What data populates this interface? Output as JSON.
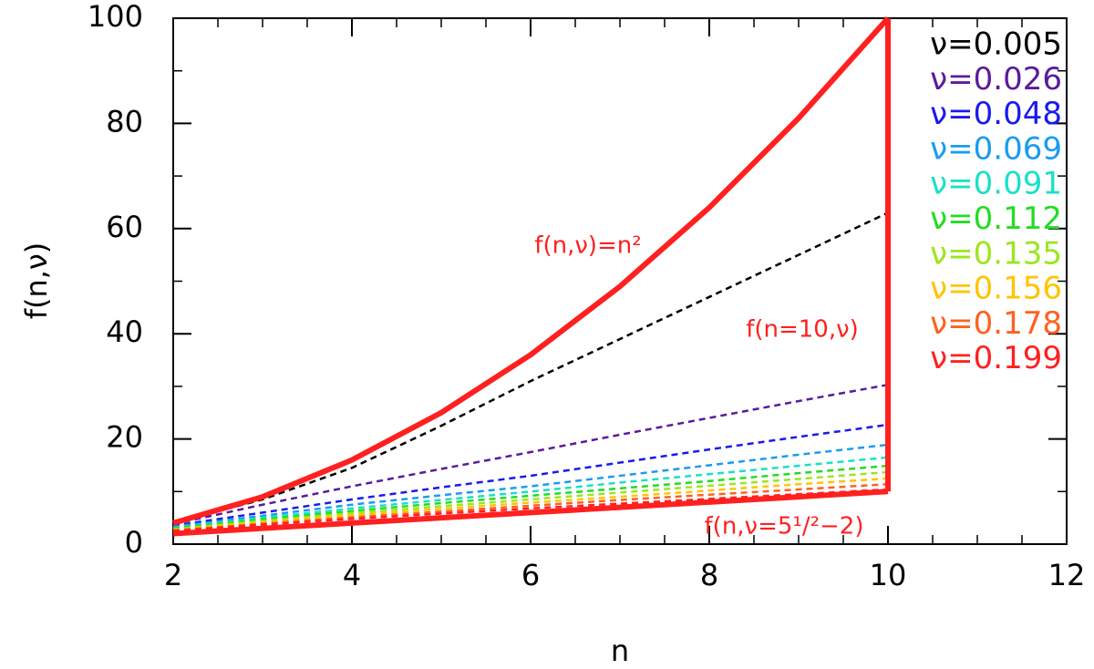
{
  "chart_data": {
    "type": "line",
    "x_label": "n",
    "y_label": "f(n,ν)",
    "xlim": [
      2,
      12
    ],
    "xticks": [
      2,
      4,
      6,
      8,
      10,
      12
    ],
    "ylim": [
      0,
      100
    ],
    "yticks": [
      0,
      20,
      40,
      60,
      80,
      100
    ],
    "annotations": [
      "f(n,ν)=n²",
      "f(n=10,ν)",
      "f(n,ν=5¹/²−2)"
    ],
    "series": [
      {
        "name": "ν=0.005",
        "color": "#000000",
        "line_style": "dashed",
        "x": [
          2,
          3,
          4,
          5,
          6,
          7,
          8,
          9,
          10
        ],
        "values": [
          4,
          8.5,
          14.5,
          22.5,
          31,
          39,
          47,
          55,
          63
        ]
      },
      {
        "name": "ν=0.026",
        "color": "#5b1a9e",
        "line_style": "dashed",
        "x": [
          2,
          3,
          4,
          5,
          6,
          7,
          8,
          9,
          10
        ],
        "values": [
          3.8,
          7.5,
          11,
          14.3,
          17.5,
          20.8,
          24,
          27.2,
          30.3
        ]
      },
      {
        "name": "ν=0.048",
        "color": "#1a1aee",
        "line_style": "dashed",
        "x": [
          2,
          3,
          4,
          5,
          6,
          7,
          8,
          9,
          10
        ],
        "values": [
          3.5,
          6,
          8.5,
          10.8,
          13,
          15.5,
          18,
          20.4,
          22.7
        ]
      },
      {
        "name": "ν=0.069",
        "color": "#1a9cf0",
        "line_style": "dashed",
        "x": [
          2,
          3,
          4,
          5,
          6,
          7,
          8,
          9,
          10
        ],
        "values": [
          3.3,
          5.4,
          7.5,
          9.3,
          11,
          13,
          15,
          17,
          18.9
        ]
      },
      {
        "name": "ν=0.091",
        "color": "#1ae0c8",
        "line_style": "dashed",
        "x": [
          2,
          3,
          4,
          5,
          6,
          7,
          8,
          9,
          10
        ],
        "values": [
          3.1,
          5,
          6.8,
          8.4,
          10,
          11.7,
          13.3,
          14.9,
          16.5
        ]
      },
      {
        "name": "ν=0.112",
        "color": "#22dd22",
        "line_style": "dashed",
        "x": [
          2,
          3,
          4,
          5,
          6,
          7,
          8,
          9,
          10
        ],
        "values": [
          3,
          4.7,
          6.3,
          7.8,
          9.2,
          10.6,
          12,
          13.5,
          14.9
        ]
      },
      {
        "name": "ν=0.135",
        "color": "#9ce61e",
        "line_style": "dashed",
        "x": [
          2,
          3,
          4,
          5,
          6,
          7,
          8,
          9,
          10
        ],
        "values": [
          2.8,
          4.4,
          5.9,
          7.2,
          8.5,
          9.8,
          11.1,
          12.4,
          13.7
        ]
      },
      {
        "name": "ν=0.156",
        "color": "#ffc400",
        "line_style": "dashed",
        "x": [
          2,
          3,
          4,
          5,
          6,
          7,
          8,
          9,
          10
        ],
        "values": [
          2.7,
          4.1,
          5.5,
          6.7,
          7.9,
          9,
          10.2,
          11.4,
          12.5
        ]
      },
      {
        "name": "ν=0.178",
        "color": "#ff6020",
        "line_style": "dashed",
        "x": [
          2,
          3,
          4,
          5,
          6,
          7,
          8,
          9,
          10
        ],
        "values": [
          2.6,
          3.9,
          5.1,
          6.2,
          7.3,
          8.4,
          9.4,
          10.4,
          11.4
        ]
      },
      {
        "name": "ν=0.199",
        "color": "#ff2020",
        "line_style": "dashed",
        "x": [
          2,
          3,
          4,
          5,
          6,
          7,
          8,
          9,
          10
        ],
        "values": [
          2.5,
          3.7,
          4.8,
          5.8,
          6.8,
          7.7,
          8.6,
          9.5,
          10.4
        ]
      },
      {
        "color": "#ff2020",
        "line_style": "solid",
        "x": [
          2,
          3,
          4,
          5,
          6,
          7,
          8,
          9,
          10
        ],
        "values": [
          4,
          9,
          16,
          25,
          36,
          49,
          64,
          81,
          100
        ]
      },
      {
        "color": "#ff2020",
        "line_style": "solid",
        "x": [
          2,
          3,
          4,
          5,
          6,
          7,
          8,
          9,
          10
        ],
        "values": [
          2,
          3,
          4,
          5,
          6,
          7,
          8,
          9,
          10
        ]
      },
      {
        "color": "#ff2020",
        "line_style": "solid",
        "x": [
          10,
          10
        ],
        "values": [
          10,
          100
        ]
      }
    ]
  }
}
